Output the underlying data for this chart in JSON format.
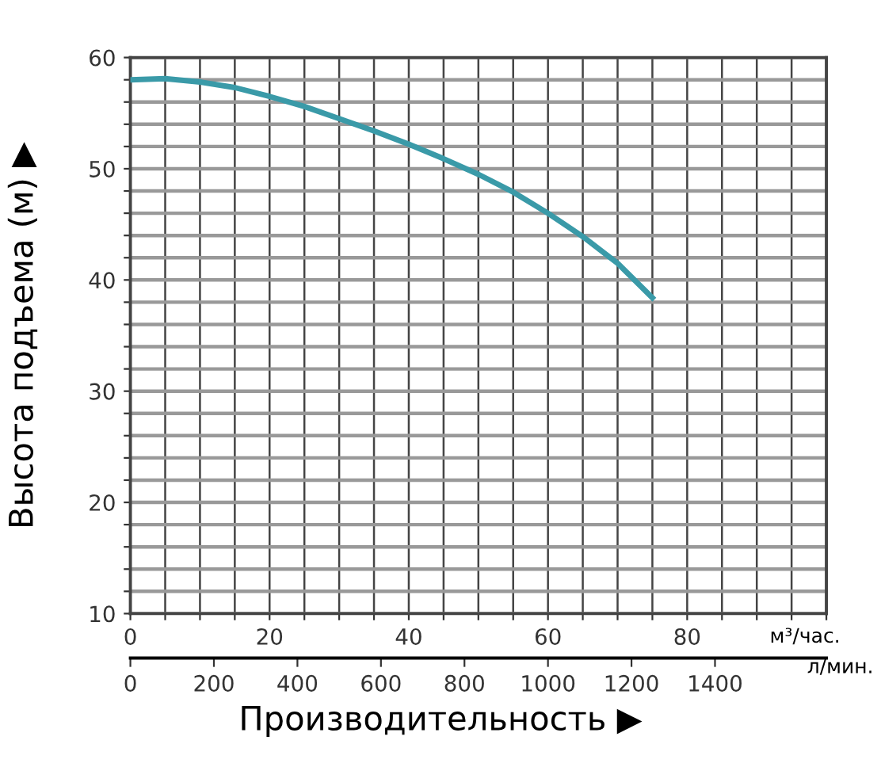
{
  "chart_data": {
    "type": "line",
    "xlabel": "м³/час.",
    "x2label": "л/мин.",
    "ylabel": "Высота подъема (м) ▶",
    "annotations": [
      "Производительность ▶"
    ],
    "x": [
      0,
      5,
      10,
      15,
      20,
      25,
      30,
      35,
      40,
      45,
      50,
      55,
      60,
      65,
      70,
      75
    ],
    "series": [
      {
        "color": "#3a9aa8",
        "values": [
          58,
          58.1,
          57.8,
          57.3,
          56.5,
          55.6,
          54.5,
          53.4,
          52.2,
          50.9,
          49.5,
          47.9,
          46.0,
          43.9,
          41.5,
          38.4
        ]
      }
    ],
    "xlim": [
      0,
      100
    ],
    "xticks": [
      0,
      {
        "value": 5,
        "label": null
      },
      {
        "value": 10,
        "label": null
      },
      {
        "value": 15,
        "label": null
      },
      20,
      {
        "value": 25,
        "label": null
      },
      {
        "value": 30,
        "label": null
      },
      {
        "value": 35,
        "label": null
      },
      40,
      {
        "value": 45,
        "label": null
      },
      {
        "value": 50,
        "label": null
      },
      {
        "value": 55,
        "label": null
      },
      60,
      {
        "value": 65,
        "label": null
      },
      {
        "value": 70,
        "label": null
      },
      {
        "value": 75,
        "label": null
      },
      80,
      {
        "value": 85,
        "label": null
      },
      {
        "value": 90,
        "label": null
      },
      {
        "value": 95,
        "label": null
      },
      {
        "value": 100,
        "label": null
      }
    ],
    "ylim": [
      10,
      60
    ],
    "yticks": [
      10,
      {
        "value": 12,
        "label": null
      },
      {
        "value": 14,
        "label": null
      },
      {
        "value": 16,
        "label": null
      },
      {
        "value": 18,
        "label": null
      },
      20,
      {
        "value": 22,
        "label": null
      },
      {
        "value": 24,
        "label": null
      },
      {
        "value": 26,
        "label": null
      },
      {
        "value": 28,
        "label": null
      },
      30,
      {
        "value": 32,
        "label": null
      },
      {
        "value": 34,
        "label": null
      },
      {
        "value": 36,
        "label": null
      },
      {
        "value": 38,
        "label": null
      },
      40,
      {
        "value": 42,
        "label": null
      },
      {
        "value": 44,
        "label": null
      },
      {
        "value": 46,
        "label": null
      },
      {
        "value": 48,
        "label": null
      },
      50,
      {
        "value": 52,
        "label": null
      },
      {
        "value": 54,
        "label": null
      },
      {
        "value": 56,
        "label": null
      },
      {
        "value": 58,
        "label": null
      },
      60
    ],
    "x2lim": [
      0,
      1666.7
    ],
    "x2ticks": [
      0,
      200,
      400,
      600,
      800,
      1000,
      1200,
      1400
    ],
    "grid": true,
    "line_style": "solid",
    "marker": "none"
  }
}
